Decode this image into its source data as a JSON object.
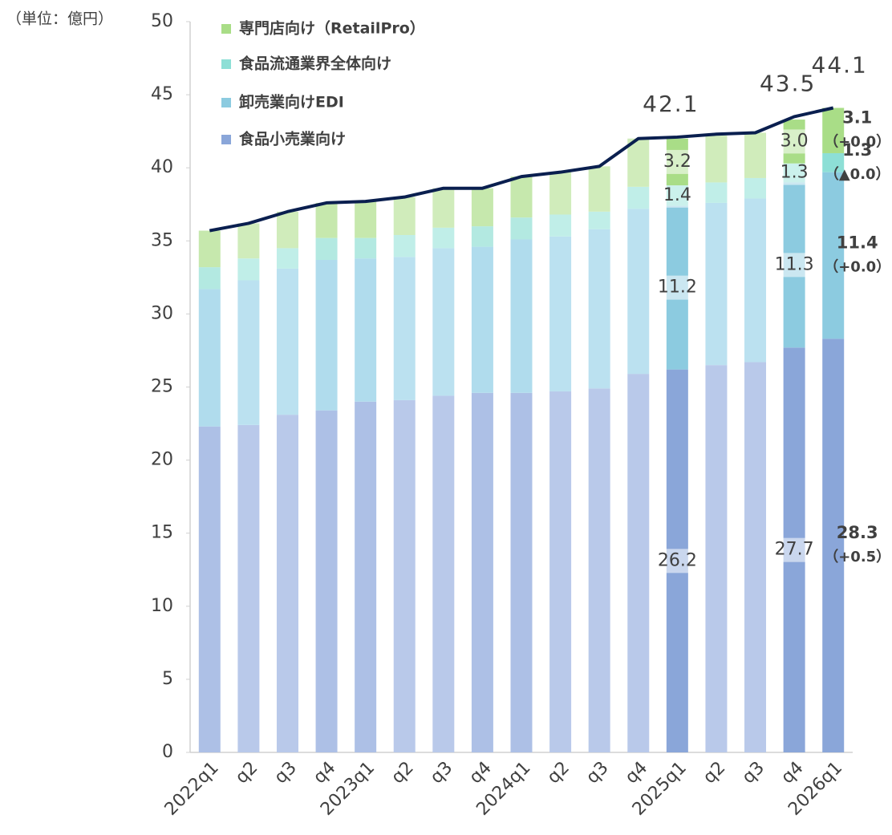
{
  "chart_data": {
    "type": "stacked_bar_line",
    "unit_label": "（単位：億円）",
    "categories": [
      "2022q1",
      "q2",
      "q3",
      "q4",
      "2023q1",
      "q2",
      "q3",
      "q4",
      "2024q1",
      "q2",
      "q3",
      "q4",
      "2025q1",
      "q2",
      "q3",
      "q4",
      "2026q1"
    ],
    "ylim": [
      0,
      50
    ],
    "yticks": [
      0,
      5,
      10,
      15,
      20,
      25,
      30,
      35,
      40,
      45,
      50
    ],
    "legend": "top-left",
    "series": [
      {
        "name": "食品小売業向け",
        "colors": [
          "#adc0e6",
          "#b9c9ea",
          "#b9c9ea",
          "#adc0e6",
          "#adc0e6",
          "#b9c9ea",
          "#b9c9ea",
          "#adc0e6",
          "#adc0e6",
          "#b9c9ea",
          "#b9c9ea",
          "#b9c9ea",
          "#8aa6d9",
          "#b9c9ea",
          "#b9c9ea",
          "#8aa6d9",
          "#8aa6d9"
        ],
        "values": [
          22.3,
          22.4,
          23.1,
          23.4,
          24.0,
          24.1,
          24.4,
          24.6,
          24.6,
          24.7,
          24.9,
          25.9,
          26.2,
          26.5,
          26.7,
          27.7,
          28.3
        ],
        "value_labels": [
          null,
          null,
          null,
          null,
          null,
          null,
          null,
          null,
          null,
          null,
          null,
          null,
          "26.2",
          null,
          null,
          "27.7",
          "28.3"
        ],
        "change_label": "（+0.5）"
      },
      {
        "name": "卸売業向けEDI",
        "colors": [
          "#b0dced",
          "#bbe1f0",
          "#bbe1f0",
          "#b0dced",
          "#b0dced",
          "#bbe1f0",
          "#bbe1f0",
          "#b0dced",
          "#b0dced",
          "#bbe1f0",
          "#bbe1f0",
          "#bbe1f0",
          "#8ccbe0",
          "#bbe1f0",
          "#bbe1f0",
          "#8ccbe0",
          "#8ccbe0"
        ],
        "values": [
          9.4,
          9.9,
          10.0,
          10.3,
          9.8,
          9.8,
          10.1,
          10.0,
          10.5,
          10.6,
          10.9,
          11.3,
          11.2,
          11.1,
          11.2,
          11.3,
          11.4
        ],
        "value_labels": [
          null,
          null,
          null,
          null,
          null,
          null,
          null,
          null,
          null,
          null,
          null,
          null,
          "11.2",
          null,
          null,
          "11.3",
          "11.4"
        ],
        "change_label": "（+0.0）"
      },
      {
        "name": "食品流通業界全体向け",
        "colors": [
          "#b3e9e1",
          "#c0eee8",
          "#c0eee8",
          "#b3e9e1",
          "#b3e9e1",
          "#c0eee8",
          "#c0eee8",
          "#b3e9e1",
          "#b3e9e1",
          "#c0eee8",
          "#c0eee8",
          "#c0eee8",
          "#8ddfd6",
          "#c0eee8",
          "#c0eee8",
          "#8ddfd6",
          "#8ddfd6"
        ],
        "values": [
          1.5,
          1.5,
          1.4,
          1.5,
          1.4,
          1.5,
          1.4,
          1.4,
          1.5,
          1.5,
          1.2,
          1.5,
          1.4,
          1.4,
          1.4,
          1.3,
          1.3
        ],
        "value_labels": [
          null,
          null,
          null,
          null,
          null,
          null,
          null,
          null,
          null,
          null,
          null,
          null,
          "1.4",
          null,
          null,
          "1.3",
          "1.3"
        ],
        "change_label": "（▲0.0）"
      },
      {
        "name": "専門店向け（RetailPro）",
        "colors": [
          "#c6e8ad",
          "#d0ecbb",
          "#d0ecbb",
          "#c6e8ad",
          "#c6e8ad",
          "#d0ecbb",
          "#d0ecbb",
          "#c6e8ad",
          "#c6e8ad",
          "#d0ecbb",
          "#d0ecbb",
          "#d0ecbb",
          "#a9dd87",
          "#d0ecbb",
          "#d0ecbb",
          "#a9dd87",
          "#a9dd87"
        ],
        "values": [
          2.5,
          2.4,
          2.5,
          2.4,
          2.5,
          2.6,
          2.7,
          2.6,
          2.8,
          2.9,
          3.1,
          3.3,
          3.2,
          3.2,
          3.1,
          3.0,
          3.1
        ],
        "value_labels": [
          null,
          null,
          null,
          null,
          null,
          null,
          null,
          null,
          null,
          null,
          null,
          null,
          "3.2",
          null,
          null,
          "3.0",
          "3.1"
        ],
        "change_label": "（+0.0）"
      }
    ],
    "total": {
      "color": "#0a1f4f",
      "values": [
        35.7,
        36.2,
        37.0,
        37.6,
        37.7,
        38.0,
        38.6,
        38.6,
        39.4,
        39.7,
        40.1,
        42.0,
        42.1,
        42.3,
        42.4,
        43.5,
        44.1
      ],
      "value_labels": [
        null,
        null,
        null,
        null,
        null,
        null,
        null,
        null,
        null,
        null,
        null,
        null,
        "42.1",
        null,
        null,
        "43.5",
        "44.1"
      ]
    }
  }
}
